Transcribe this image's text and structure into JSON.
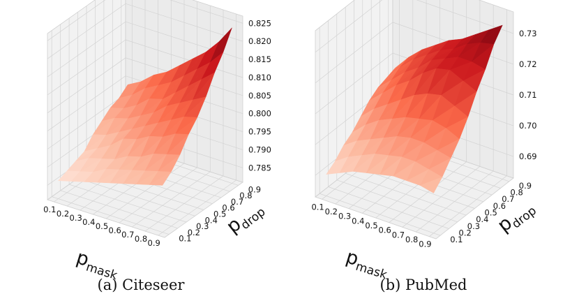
{
  "chart_data": [
    {
      "type": "surface3d",
      "caption": "(a) Citeseer",
      "xlabel_main": "p",
      "xlabel_sub": "mask",
      "ylabel_main": "p",
      "ylabel_sub": "drop",
      "x_ticks": [
        "0.1",
        "0.2",
        "0.3",
        "0.4",
        "0.5",
        "0.6",
        "0.7",
        "0.8",
        "0.9"
      ],
      "y_ticks": [
        "0.1",
        "0.2",
        "0.3",
        "0.4",
        "0.5",
        "0.6",
        "0.7",
        "0.8",
        "0.9"
      ],
      "z_ticks": [
        "0.785",
        "0.790",
        "0.795",
        "0.800",
        "0.805",
        "0.810",
        "0.815",
        "0.820",
        "0.825"
      ],
      "zlim": [
        0.781,
        0.827
      ],
      "colormap": "Reds",
      "grid": true,
      "x": [
        0.1,
        0.2,
        0.3,
        0.4,
        0.5,
        0.6,
        0.7,
        0.8,
        0.9
      ],
      "y": [
        0.1,
        0.2,
        0.3,
        0.4,
        0.5,
        0.6,
        0.7,
        0.8,
        0.9
      ],
      "z": [
        [
          0.786,
          0.787,
          0.788,
          0.789,
          0.792,
          0.794,
          0.796,
          0.797,
          0.799
        ],
        [
          0.787,
          0.788,
          0.79,
          0.791,
          0.793,
          0.796,
          0.797,
          0.799,
          0.801
        ],
        [
          0.788,
          0.789,
          0.791,
          0.793,
          0.795,
          0.797,
          0.799,
          0.802,
          0.804
        ],
        [
          0.789,
          0.791,
          0.792,
          0.796,
          0.797,
          0.799,
          0.802,
          0.804,
          0.806
        ],
        [
          0.79,
          0.792,
          0.794,
          0.797,
          0.799,
          0.801,
          0.803,
          0.806,
          0.809
        ],
        [
          0.791,
          0.793,
          0.795,
          0.799,
          0.801,
          0.804,
          0.806,
          0.809,
          0.812
        ],
        [
          0.792,
          0.794,
          0.797,
          0.8,
          0.803,
          0.806,
          0.809,
          0.812,
          0.815
        ],
        [
          0.793,
          0.795,
          0.798,
          0.802,
          0.805,
          0.808,
          0.812,
          0.815,
          0.819
        ],
        [
          0.794,
          0.796,
          0.799,
          0.803,
          0.806,
          0.81,
          0.815,
          0.819,
          0.824
        ]
      ]
    },
    {
      "type": "surface3d",
      "caption": "(b) PubMed",
      "xlabel_main": "p",
      "xlabel_sub": "mask",
      "ylabel_main": "p",
      "ylabel_sub": "drop",
      "x_ticks": [
        "0.1",
        "0.2",
        "0.3",
        "0.4",
        "0.5",
        "0.6",
        "0.7",
        "0.8",
        "0.9"
      ],
      "y_ticks": [
        "0.1",
        "0.2",
        "0.3",
        "0.4",
        "0.5",
        "0.6",
        "0.7",
        "0.8",
        "0.9"
      ],
      "z_ticks": [
        "0.69",
        "0.70",
        "0.71",
        "0.72",
        "0.73"
      ],
      "zlim": [
        0.683,
        0.737
      ],
      "colormap": "Reds",
      "grid": true,
      "x": [
        0.1,
        0.2,
        0.3,
        0.4,
        0.5,
        0.6,
        0.7,
        0.8,
        0.9
      ],
      "y": [
        0.1,
        0.2,
        0.3,
        0.4,
        0.5,
        0.6,
        0.7,
        0.8,
        0.9
      ],
      "z": [
        [
          0.69,
          0.692,
          0.695,
          0.697,
          0.7,
          0.703,
          0.705,
          0.706,
          0.707
        ],
        [
          0.692,
          0.695,
          0.698,
          0.701,
          0.704,
          0.707,
          0.709,
          0.711,
          0.712
        ],
        [
          0.694,
          0.697,
          0.7,
          0.704,
          0.707,
          0.711,
          0.713,
          0.715,
          0.716
        ],
        [
          0.695,
          0.699,
          0.702,
          0.706,
          0.71,
          0.714,
          0.716,
          0.718,
          0.719
        ],
        [
          0.696,
          0.7,
          0.704,
          0.708,
          0.713,
          0.718,
          0.72,
          0.721,
          0.722
        ],
        [
          0.697,
          0.701,
          0.705,
          0.709,
          0.715,
          0.721,
          0.722,
          0.723,
          0.724
        ],
        [
          0.697,
          0.701,
          0.705,
          0.71,
          0.716,
          0.722,
          0.724,
          0.726,
          0.727
        ],
        [
          0.697,
          0.7,
          0.704,
          0.709,
          0.714,
          0.72,
          0.724,
          0.728,
          0.73
        ],
        [
          0.696,
          0.699,
          0.703,
          0.707,
          0.712,
          0.718,
          0.723,
          0.729,
          0.733
        ]
      ]
    }
  ]
}
